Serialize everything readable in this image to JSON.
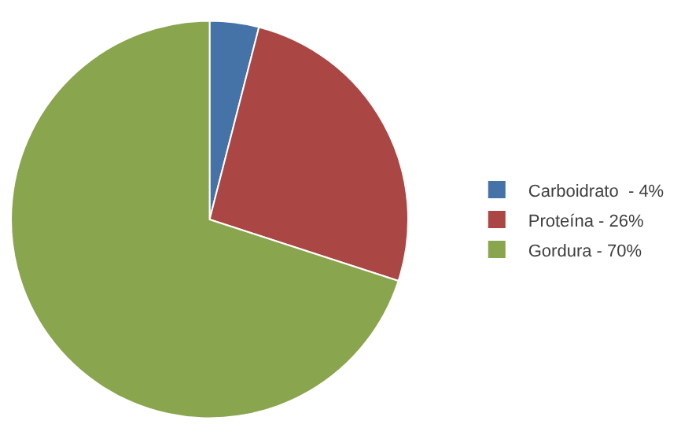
{
  "chart_data": {
    "type": "pie",
    "categories": [
      "Carboidrato  - 4%",
      "Proteína - 26%",
      "Gordura - 70%"
    ],
    "values": [
      4,
      26,
      70
    ],
    "colors": [
      "#4572a7",
      "#aa4643",
      "#89a54e"
    ],
    "legend": "right"
  }
}
